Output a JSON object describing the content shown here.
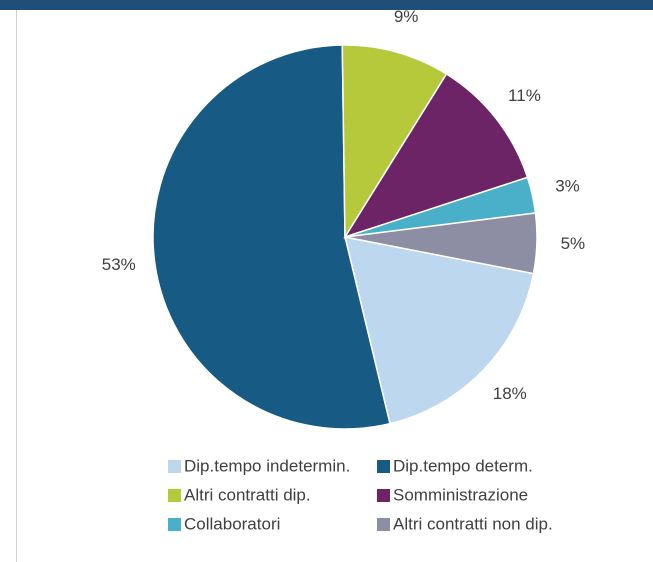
{
  "chart_data": {
    "type": "pie",
    "categories": [
      "Dip.tempo indetermin.",
      "Dip.tempo determ.",
      "Altri contratti dip.",
      "Somministrazione",
      "Collaboratori",
      "Altri contratti non dip."
    ],
    "values": [
      18,
      53,
      9,
      11,
      3,
      5
    ],
    "value_labels": [
      "18%",
      "53%",
      "9%",
      "11%",
      "3%",
      "5%"
    ],
    "colors": [
      "#bdd7ee",
      "#175a84",
      "#b6c93b",
      "#6c2466",
      "#4aafc8",
      "#8d8da3"
    ],
    "legend": "bottom"
  }
}
